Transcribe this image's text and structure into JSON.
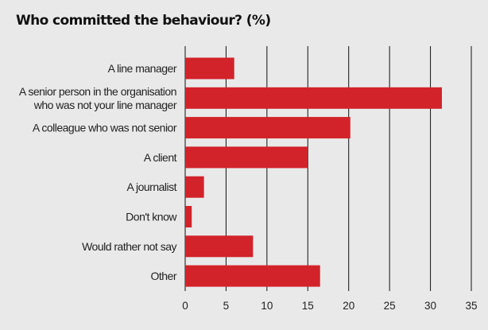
{
  "chart_data": {
    "type": "bar",
    "orientation": "horizontal",
    "title": "Who committed the behaviour? (%)",
    "categories": [
      [
        "A line manager"
      ],
      [
        "A senior person in the organisation",
        "who was not your line manager"
      ],
      [
        "A colleague who was not senior"
      ],
      [
        "A client"
      ],
      [
        "A journalist"
      ],
      [
        "Don't know"
      ],
      [
        "Would rather not say"
      ],
      [
        "Other"
      ]
    ],
    "values": [
      6,
      31.4,
      20.2,
      15,
      2.3,
      0.8,
      8.3,
      16.5
    ],
    "xlim": [
      0,
      35
    ],
    "xticks": [
      0,
      5,
      10,
      15,
      20,
      25,
      30,
      35
    ],
    "grid": true,
    "bar_color": "#d2232a",
    "grid_color": "#111111"
  }
}
